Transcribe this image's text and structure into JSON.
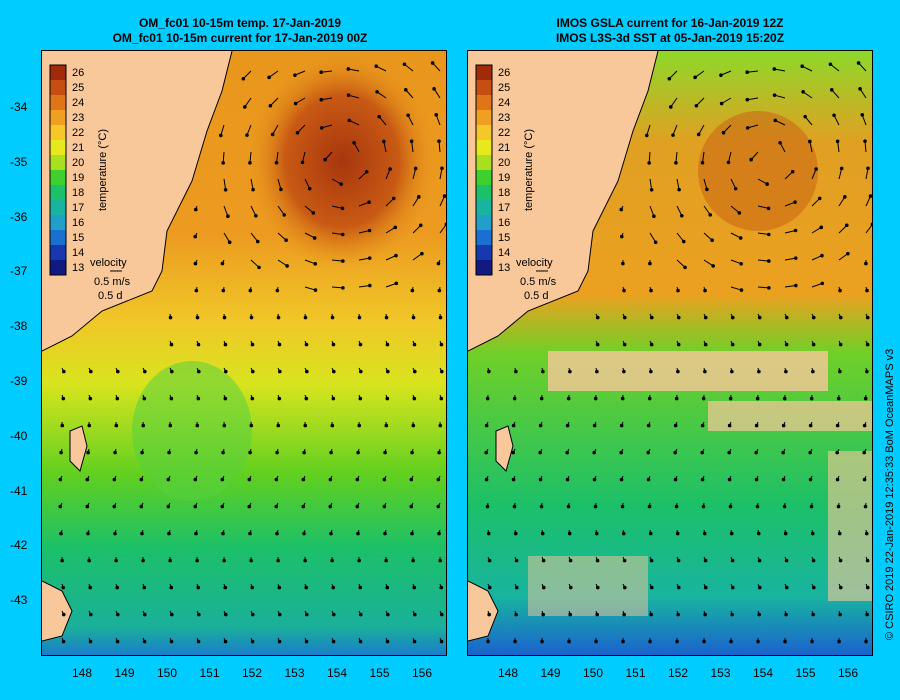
{
  "left_panel": {
    "title_line1": "OM_fc01 10-15m temp. 17-Jan-2019",
    "title_line2": "OM_fc01 10-15m current for 17-Jan-2019 00Z"
  },
  "right_panel": {
    "title_line1": "IMOS GSLA current for 16-Jan-2019 12Z",
    "title_line2": "IMOS L3S-3d SST at 05-Jan-2019 15:20Z"
  },
  "colorbar": {
    "label": "temperature (°C)",
    "ticks": [
      "26",
      "25",
      "24",
      "23",
      "22",
      "21",
      "20",
      "19",
      "18",
      "17",
      "16",
      "15",
      "14",
      "13"
    ],
    "colors": [
      "#a02a0a",
      "#c64e12",
      "#e07418",
      "#f0a020",
      "#f5c828",
      "#e8e81e",
      "#a8e020",
      "#3fd02f",
      "#1cc068",
      "#18b4a0",
      "#20a0c8",
      "#1a70d0",
      "#1838b0",
      "#101a80"
    ]
  },
  "velocity_key": {
    "label": "velocity",
    "speed": "0.5 m/s",
    "duration": "0.5 d"
  },
  "axes": {
    "lat_ticks": [
      "-34",
      "-35",
      "-36",
      "-37",
      "-38",
      "-39",
      "-40",
      "-41",
      "-42",
      "-43"
    ],
    "lon_ticks": [
      "148",
      "149",
      "150",
      "151",
      "152",
      "153",
      "154",
      "155",
      "156"
    ]
  },
  "credit": "© CSIRO 2019   22-Jan-2019 12:35:33 BoM OceanMAPS v3"
}
